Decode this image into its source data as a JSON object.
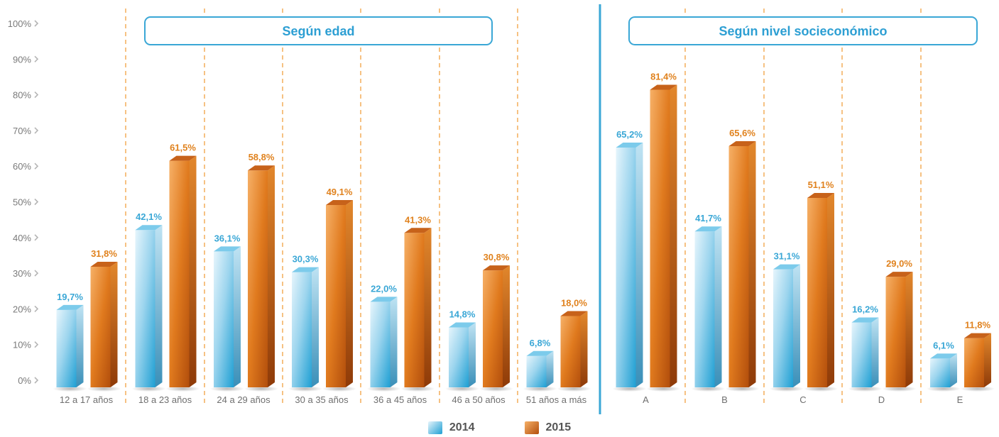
{
  "chart_data": {
    "type": "bar",
    "ylim": [
      0,
      100
    ],
    "y_ticks": [
      "0%",
      "10%",
      "20%",
      "30%",
      "40%",
      "50%",
      "60%",
      "70%",
      "80%",
      "90%",
      "100%"
    ],
    "series_names": [
      "2014",
      "2015"
    ],
    "colors": {
      "s2014": "#4BB8E3",
      "s2015": "#E07A1E",
      "divider": "#3AA7D6",
      "grid": "#F0A040"
    },
    "panels": [
      {
        "title": "Según edad",
        "categories": [
          "12 a 17 años",
          "18 a 23 años",
          "24 a 29 años",
          "30 a 35 años",
          "36 a 45 años",
          "46 a 50 años",
          "51 años a más"
        ],
        "series": [
          {
            "name": "2014",
            "values": [
              19.7,
              42.1,
              36.1,
              30.3,
              22.0,
              14.8,
              6.8
            ],
            "labels": [
              "19,7%",
              "42,1%",
              "36,1%",
              "30,3%",
              "22,0%",
              "14,8%",
              "6,8%"
            ]
          },
          {
            "name": "2015",
            "values": [
              31.8,
              61.5,
              58.8,
              49.1,
              41.3,
              30.8,
              18.0
            ],
            "labels": [
              "31,8%",
              "61,5%",
              "58,8%",
              "49,1%",
              "41,3%",
              "30,8%",
              "18,0%"
            ]
          }
        ]
      },
      {
        "title": "Según nivel socieconómico",
        "categories": [
          "A",
          "B",
          "C",
          "D",
          "E"
        ],
        "series": [
          {
            "name": "2014",
            "values": [
              65.2,
              41.7,
              31.1,
              16.2,
              6.1
            ],
            "labels": [
              "65,2%",
              "41,7%",
              "31,1%",
              "16,2%",
              "6,1%"
            ]
          },
          {
            "name": "2015",
            "values": [
              81.4,
              65.6,
              51.1,
              29.0,
              11.8
            ],
            "labels": [
              "81,4%",
              "65,6%",
              "51,1%",
              "29,0%",
              "11,8%"
            ]
          }
        ]
      }
    ]
  },
  "legend": {
    "item_2014": "2014",
    "item_2015": "2015"
  }
}
